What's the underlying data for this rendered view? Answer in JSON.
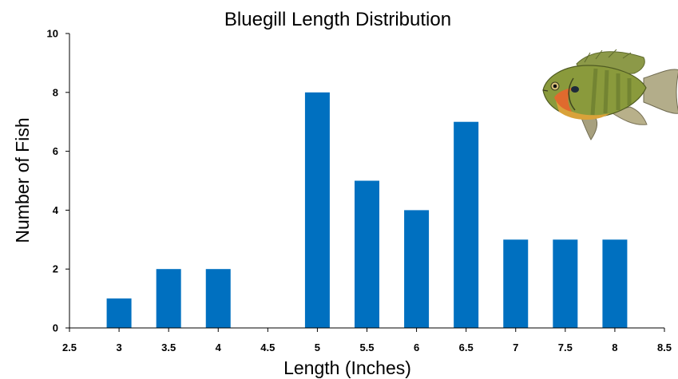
{
  "chart_data": {
    "type": "bar",
    "title": "Bluegill Length Distribution",
    "xlabel": "Length (Inches)",
    "ylabel": "Number of Fish",
    "x": [
      3,
      3.5,
      4,
      4.5,
      5,
      5.5,
      6,
      6.5,
      7,
      7.5,
      8
    ],
    "values": [
      1,
      2,
      2,
      0,
      8,
      5,
      4,
      7,
      3,
      3,
      3
    ],
    "xlim": [
      2.5,
      8.5
    ],
    "ylim": [
      0,
      10
    ],
    "xticks": [
      "2.5",
      "3",
      "3.5",
      "4",
      "4.5",
      "5",
      "5.5",
      "6",
      "6.5",
      "7",
      "7.5",
      "8",
      "8.5"
    ],
    "yticks": [
      "0",
      "2",
      "4",
      "6",
      "8",
      "10"
    ],
    "grid": false,
    "bar_color": "#0070C0"
  },
  "illustration": {
    "icon": "bluegill-fish-icon"
  }
}
